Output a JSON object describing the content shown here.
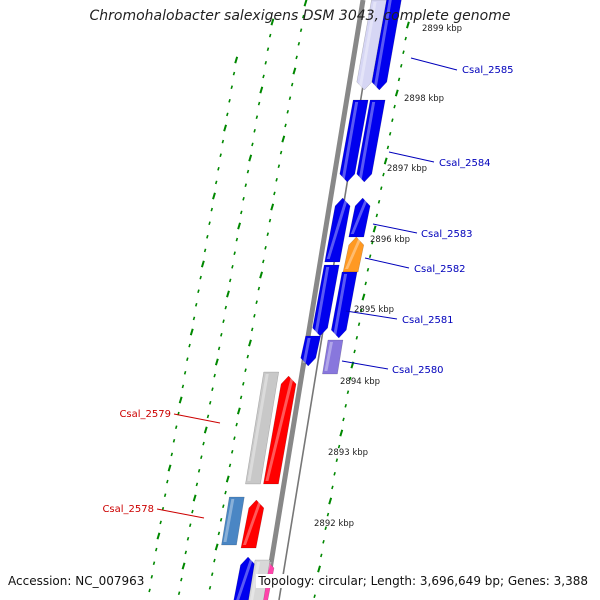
{
  "title": "Chromohalobacter salexigens DSM 3043, complete genome",
  "footer": {
    "accession": "Accession: NC_007963",
    "topology": "Topology: circular; Length: 3,696,649 bp; Genes: 3,388"
  },
  "colors": {
    "blue": "#0000ee",
    "red": "#ff0000",
    "gray": "#c8c8c8",
    "orange": "#ff9922",
    "lavender": "#8877dd",
    "steel": "#4a86c4",
    "pink": "#ff44aa",
    "tick_green": "#008800",
    "forward_label": "#0000bb",
    "reverse_label": "#cc0000"
  },
  "scale_labels": [
    "2899 kbp",
    "2898 kbp",
    "2897 kbp",
    "2896 kbp",
    "2895 kbp",
    "2894 kbp",
    "2893 kbp",
    "2892 kbp"
  ],
  "gene_labels": {
    "forward": [
      "Csal_2585",
      "Csal_2584",
      "Csal_2583",
      "Csal_2582",
      "Csal_2581",
      "Csal_2580"
    ],
    "reverse": [
      "Csal_2579",
      "Csal_2578"
    ]
  }
}
